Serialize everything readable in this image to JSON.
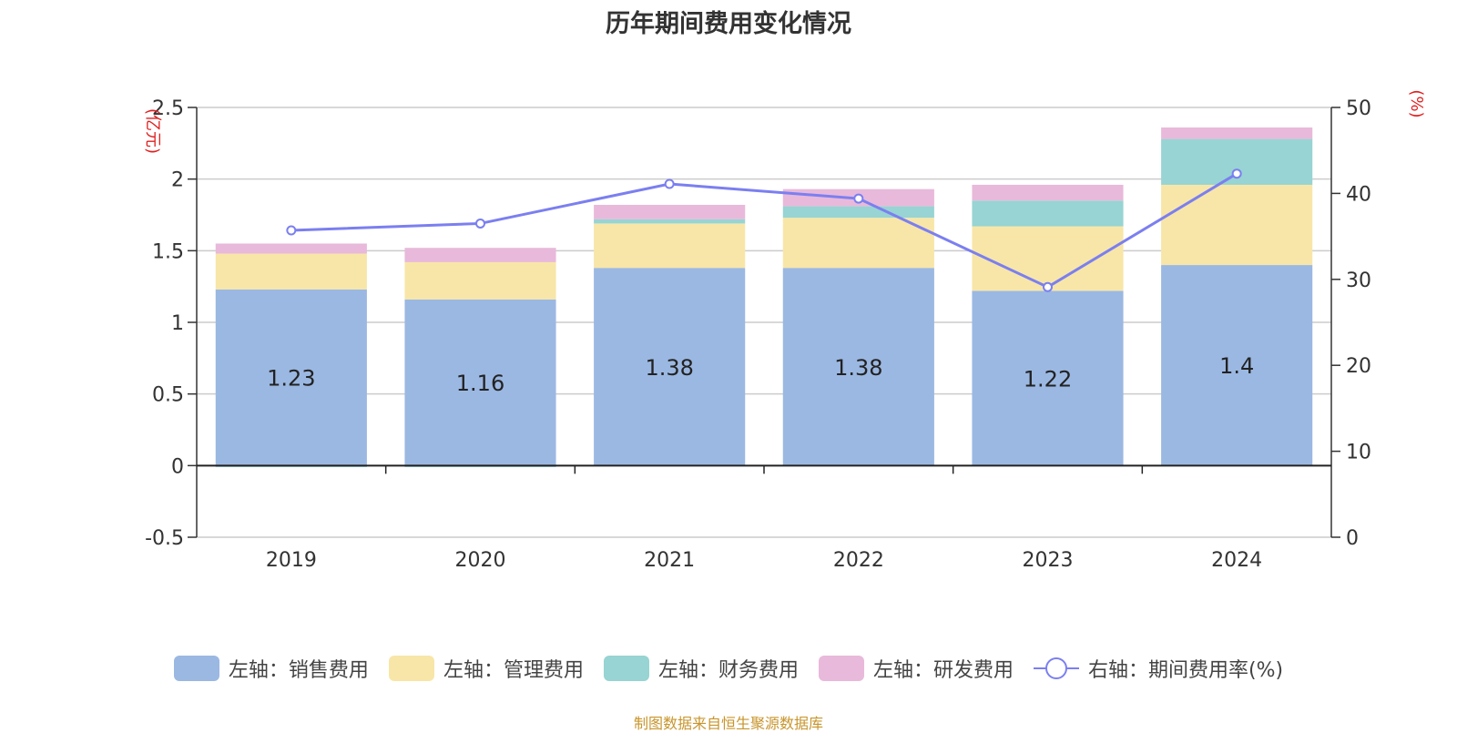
{
  "title": "历年期间费用变化情况",
  "source": "制图数据来自恒生聚源数据库",
  "colors": {
    "sales": "#9bb8e2",
    "admin": "#f8e6a8",
    "finance": "#97d4d3",
    "rd": "#e8b9da",
    "rate": "#7b7ff0",
    "axis_unit": "#e02020"
  },
  "chart_data": {
    "type": "bar",
    "stacked": true,
    "categories": [
      "2019",
      "2020",
      "2021",
      "2022",
      "2023",
      "2024"
    ],
    "left_axis": {
      "unit": "(亿元)",
      "ylim": [
        -0.5,
        2.5
      ],
      "ticks": [
        "-0.5",
        "0",
        "0.5",
        "1",
        "1.5",
        "2",
        "2.5"
      ]
    },
    "right_axis": {
      "unit": "(%)",
      "ylim": [
        0,
        50
      ],
      "ticks": [
        "0",
        "10",
        "20",
        "30",
        "40",
        "50"
      ]
    },
    "series": [
      {
        "name": "左轴：销售费用",
        "values": [
          1.23,
          1.16,
          1.38,
          1.38,
          1.22,
          1.4
        ],
        "labels": [
          "1.23",
          "1.16",
          "1.38",
          "1.38",
          "1.22",
          "1.4"
        ]
      },
      {
        "name": "左轴：管理费用",
        "values": [
          0.25,
          0.26,
          0.31,
          0.35,
          0.45,
          0.56
        ]
      },
      {
        "name": "左轴：财务费用",
        "values": [
          -0.01,
          -0.01,
          0.03,
          0.08,
          0.18,
          0.32
        ]
      },
      {
        "name": "左轴：研发费用",
        "values": [
          0.07,
          0.1,
          0.1,
          0.12,
          0.11,
          0.08
        ]
      }
    ],
    "line": {
      "name": "右轴：期间费用率(%)",
      "values": [
        35.7,
        36.5,
        41.1,
        39.4,
        29.1,
        42.3
      ]
    }
  }
}
